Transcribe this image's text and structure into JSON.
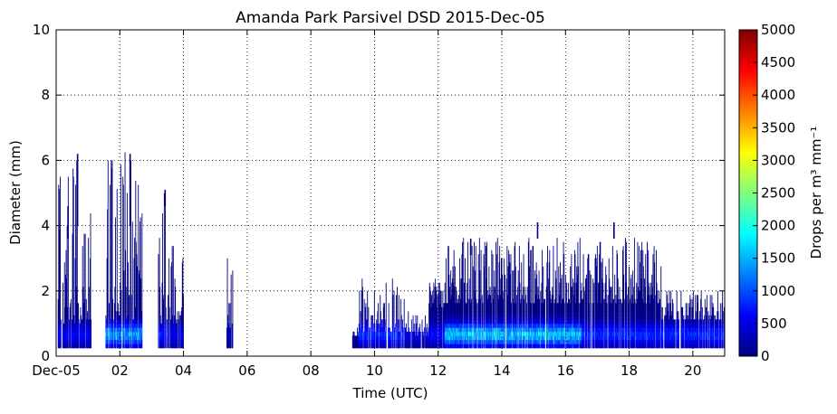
{
  "chart_data": {
    "type": "heatmap",
    "title": "Amanda Park Parsivel DSD 2015-Dec-05",
    "xlabel": "Time (UTC)",
    "ylabel": "Diameter (mm)",
    "xlim": [
      0,
      21
    ],
    "ylim": [
      0,
      10
    ],
    "x_ticks": [
      {
        "value": 0,
        "label": "Dec-05"
      },
      {
        "value": 2,
        "label": "02"
      },
      {
        "value": 4,
        "label": "04"
      },
      {
        "value": 6,
        "label": "06"
      },
      {
        "value": 8,
        "label": "08"
      },
      {
        "value": 10,
        "label": "10"
      },
      {
        "value": 12,
        "label": "12"
      },
      {
        "value": 14,
        "label": "14"
      },
      {
        "value": 16,
        "label": "16"
      },
      {
        "value": 18,
        "label": "18"
      },
      {
        "value": 20,
        "label": "20"
      }
    ],
    "y_ticks": [
      {
        "value": 0,
        "label": "0"
      },
      {
        "value": 2,
        "label": "2"
      },
      {
        "value": 4,
        "label": "4"
      },
      {
        "value": 6,
        "label": "6"
      },
      {
        "value": 8,
        "label": "8"
      },
      {
        "value": 10,
        "label": "10"
      }
    ],
    "grid": true,
    "grid_style": "dotted",
    "colormap": "jet",
    "colorbar": {
      "label": "Drops per m³ mm⁻¹",
      "range": [
        0,
        5000
      ],
      "ticks": [
        {
          "value": 0,
          "label": "0"
        },
        {
          "value": 500,
          "label": "500"
        },
        {
          "value": 1000,
          "label": "1000"
        },
        {
          "value": 1500,
          "label": "1500"
        },
        {
          "value": 2000,
          "label": "2000"
        },
        {
          "value": 2500,
          "label": "2500"
        },
        {
          "value": 3000,
          "label": "3000"
        },
        {
          "value": 3500,
          "label": "3500"
        },
        {
          "value": 4000,
          "label": "4000"
        },
        {
          "value": 4500,
          "label": "4500"
        },
        {
          "value": 5000,
          "label": "5000"
        }
      ]
    },
    "episodes": [
      {
        "start": 0.05,
        "end": 1.1,
        "top_min": 0.9,
        "top_max": 6.2,
        "peak": 700
      },
      {
        "start": 1.55,
        "end": 2.7,
        "top_min": 1.0,
        "top_max": 6.2,
        "peak": 1700
      },
      {
        "start": 3.2,
        "end": 3.5,
        "top_min": 0.9,
        "top_max": 5.1,
        "peak": 900
      },
      {
        "start": 3.5,
        "end": 4.0,
        "top_min": 0.9,
        "top_max": 3.6,
        "peak": 600
      },
      {
        "start": 5.35,
        "end": 5.55,
        "top_min": 0.7,
        "top_max": 3.1,
        "peak": 300
      },
      {
        "start": 9.3,
        "end": 9.5,
        "top_min": 0.5,
        "top_max": 0.8,
        "peak": 150
      },
      {
        "start": 9.5,
        "end": 10.95,
        "top_min": 0.7,
        "top_max": 2.3,
        "peak": 1000
      },
      {
        "start": 10.95,
        "end": 11.7,
        "top_min": 0.6,
        "top_max": 1.3,
        "peak": 500
      },
      {
        "start": 11.7,
        "end": 12.2,
        "top_min": 1.4,
        "top_max": 2.3,
        "peak": 800
      },
      {
        "start": 12.2,
        "end": 16.5,
        "top_min": 1.5,
        "top_max": 3.6,
        "peak": 2000
      },
      {
        "start": 16.5,
        "end": 19.0,
        "top_min": 1.5,
        "top_max": 3.6,
        "peak": 1000
      },
      {
        "start": 19.0,
        "end": 21.0,
        "top_min": 1.0,
        "top_max": 2.0,
        "peak": 1000
      }
    ],
    "isolated_drops": [
      {
        "time": 0.35,
        "d_min": 3.6,
        "d_max": 4.6
      },
      {
        "time": 0.65,
        "d_min": 4.0,
        "d_max": 6.2
      },
      {
        "time": 2.3,
        "d_min": 4.0,
        "d_max": 6.2
      },
      {
        "time": 3.4,
        "d_min": 4.6,
        "d_max": 5.1
      },
      {
        "time": 13.0,
        "d_min": 3.1,
        "d_max": 3.6
      },
      {
        "time": 15.1,
        "d_min": 3.6,
        "d_max": 4.1
      },
      {
        "time": 17.5,
        "d_min": 3.6,
        "d_max": 4.1
      }
    ]
  }
}
